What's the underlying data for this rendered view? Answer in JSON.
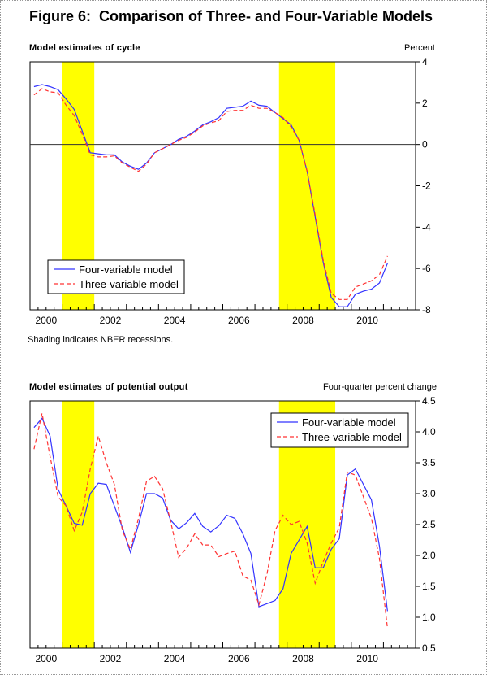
{
  "figure_title": "Figure 6:  Comparison of Three- and Four-Variable Models",
  "note": "Shading indicates NBER recessions.",
  "colors": {
    "four_variable": "#3333ff",
    "three_variable": "#ff3333",
    "recession_shading": "#ffff00"
  },
  "chart_data": [
    {
      "type": "line",
      "title": "Model estimates of cycle",
      "ylabel": "Percent",
      "y_axis_side": "right",
      "ylim": [
        -8,
        4
      ],
      "yticks": [
        4,
        2,
        0,
        -2,
        -4,
        -6,
        -8
      ],
      "ytick_labels": [
        "4",
        "2",
        "0",
        "-2",
        "-4",
        "-6",
        "-8"
      ],
      "xlim": [
        2000,
        2012
      ],
      "xtick_labels": [
        "2000",
        "2002",
        "2004",
        "2006",
        "2008",
        "2010"
      ],
      "x_frequency": "quarterly",
      "x_start": "2000Q1",
      "x_end": "2011Q1",
      "zero_line": true,
      "recessions": [
        [
          "2001Q1",
          "2001Q4"
        ],
        [
          "2007Q4",
          "2009Q2"
        ]
      ],
      "legend_position": "bottom-left",
      "series": [
        {
          "name": "Four-variable model",
          "style": "solid",
          "values": [
            2.8,
            2.9,
            2.8,
            2.65,
            2.2,
            1.7,
            0.65,
            -0.4,
            -0.45,
            -0.5,
            -0.5,
            -0.85,
            -1.05,
            -1.2,
            -0.9,
            -0.4,
            -0.2,
            0.0,
            0.25,
            0.4,
            0.65,
            0.95,
            1.1,
            1.3,
            1.75,
            1.8,
            1.85,
            2.1,
            1.9,
            1.85,
            1.55,
            1.25,
            0.95,
            0.2,
            -1.3,
            -3.5,
            -5.7,
            -7.4,
            -7.85,
            -7.85,
            -7.25,
            -7.1,
            -7.0,
            -6.7,
            -5.75
          ]
        },
        {
          "name": "Three-variable model",
          "style": "dashed",
          "values": [
            2.4,
            2.7,
            2.55,
            2.5,
            1.9,
            1.4,
            0.5,
            -0.5,
            -0.6,
            -0.6,
            -0.55,
            -0.9,
            -1.1,
            -1.3,
            -0.95,
            -0.4,
            -0.2,
            0.0,
            0.2,
            0.35,
            0.6,
            0.9,
            1.05,
            1.15,
            1.6,
            1.65,
            1.65,
            1.9,
            1.75,
            1.75,
            1.55,
            1.3,
            0.85,
            0.2,
            -1.3,
            -3.4,
            -5.6,
            -7.2,
            -7.5,
            -7.5,
            -6.9,
            -6.75,
            -6.6,
            -6.3,
            -5.4
          ]
        }
      ]
    },
    {
      "type": "line",
      "title": "Model estimates of potential output",
      "ylabel": "Four-quarter percent change",
      "y_axis_side": "right",
      "ylim": [
        0.5,
        4.5
      ],
      "yticks": [
        4.5,
        4.0,
        3.5,
        3.0,
        2.5,
        2.0,
        1.5,
        1.0,
        0.5
      ],
      "ytick_labels": [
        "4.5",
        "4.0",
        "3.5",
        "3.0",
        "2.5",
        "2.0",
        "1.5",
        "1.0",
        "0.5"
      ],
      "xlim": [
        2000,
        2012
      ],
      "xtick_labels": [
        "2000",
        "2002",
        "2004",
        "2006",
        "2008",
        "2010"
      ],
      "x_frequency": "quarterly",
      "x_start": "2000Q1",
      "x_end": "2011Q1",
      "zero_line": false,
      "recessions": [
        [
          "2001Q1",
          "2001Q4"
        ],
        [
          "2007Q4",
          "2009Q2"
        ]
      ],
      "legend_position": "top-right",
      "series": [
        {
          "name": "Four-variable model",
          "style": "solid",
          "values": [
            4.07,
            4.22,
            3.93,
            3.07,
            2.8,
            2.52,
            2.49,
            3.0,
            3.17,
            3.15,
            2.8,
            2.45,
            2.05,
            2.5,
            3.0,
            3.0,
            2.93,
            2.57,
            2.43,
            2.53,
            2.68,
            2.47,
            2.38,
            2.48,
            2.65,
            2.6,
            2.35,
            2.03,
            1.17,
            1.22,
            1.27,
            1.46,
            2.03,
            2.25,
            2.47,
            1.8,
            1.8,
            2.1,
            2.27,
            3.3,
            3.4,
            3.15,
            2.9,
            2.15,
            1.1
          ]
        },
        {
          "name": "Three-variable model",
          "style": "dashed",
          "values": [
            3.72,
            4.3,
            3.6,
            2.95,
            2.8,
            2.4,
            2.7,
            3.4,
            3.93,
            3.5,
            3.15,
            2.4,
            2.1,
            2.6,
            3.2,
            3.28,
            3.08,
            2.55,
            1.97,
            2.12,
            2.35,
            2.17,
            2.17,
            1.98,
            2.03,
            2.07,
            1.67,
            1.6,
            1.2,
            1.7,
            2.4,
            2.65,
            2.5,
            2.55,
            2.2,
            1.55,
            1.9,
            2.2,
            2.45,
            3.35,
            3.3,
            2.95,
            2.6,
            1.95,
            0.82
          ]
        }
      ]
    }
  ]
}
